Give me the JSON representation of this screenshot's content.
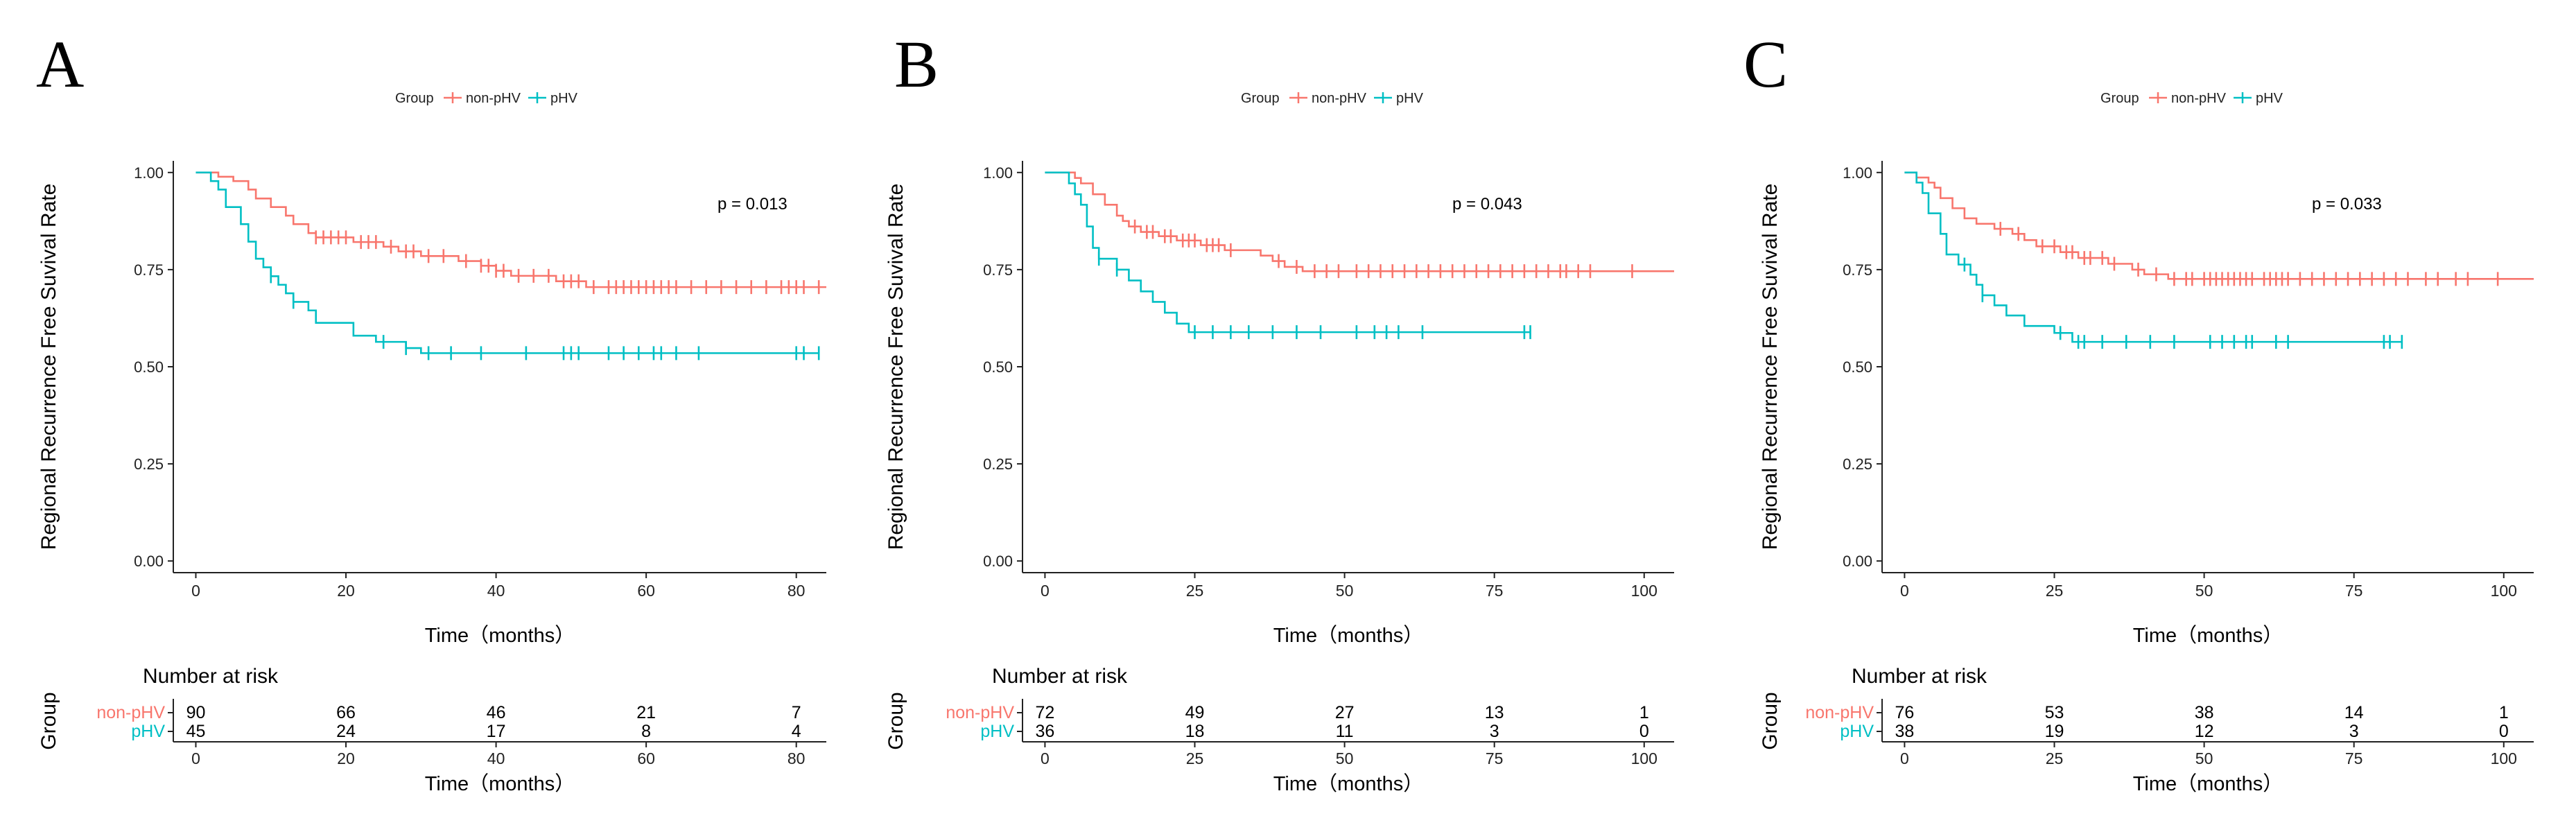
{
  "figure": {
    "legend": {
      "title": "Group",
      "entries": [
        "non-pHV",
        "pHV"
      ]
    },
    "colors": {
      "non_phv": "#F8766D",
      "phv": "#00BFC4",
      "axis": "#222222"
    },
    "ylabel": "Regional Recurrence Free Suvival Rate",
    "xlabel": "Time（months）",
    "risk_title": "Number at risk",
    "risk_ylabel": "Group"
  },
  "chart_data": [
    {
      "type": "line",
      "panel": "A",
      "p_value": "p = 0.013",
      "xlim": [
        -3,
        84
      ],
      "ylim": [
        -0.03,
        1.03
      ],
      "xticks": [
        0,
        20,
        40,
        60,
        80
      ],
      "yticks": [
        0,
        0.25,
        0.5,
        0.75,
        1
      ],
      "ytick_labels": [
        "0.00",
        "0.25",
        "0.50",
        "0.75",
        "1.00"
      ],
      "series": [
        {
          "name": "non-pHV",
          "steps": [
            [
              0,
              1.0
            ],
            [
              3,
              0.989
            ],
            [
              5,
              0.978
            ],
            [
              7,
              0.956
            ],
            [
              8,
              0.933
            ],
            [
              10,
              0.911
            ],
            [
              12,
              0.889
            ],
            [
              13,
              0.867
            ],
            [
              15,
              0.844
            ],
            [
              16,
              0.833
            ],
            [
              21,
              0.821
            ],
            [
              25,
              0.809
            ],
            [
              27,
              0.797
            ],
            [
              30,
              0.785
            ],
            [
              35,
              0.772
            ],
            [
              38,
              0.76
            ],
            [
              40,
              0.747
            ],
            [
              42,
              0.734
            ],
            [
              48,
              0.72
            ],
            [
              52,
              0.705
            ]
          ],
          "end": 84,
          "censor": [
            16,
            17,
            18,
            19,
            20,
            22,
            23,
            24,
            26,
            28,
            29,
            31,
            33,
            36,
            38,
            39,
            40,
            41,
            43,
            45,
            47,
            49,
            50,
            51,
            53,
            55,
            56,
            57,
            58,
            59,
            60,
            61,
            62,
            63,
            64,
            66,
            68,
            70,
            72,
            74,
            76,
            78,
            79,
            80,
            81,
            83
          ]
        },
        {
          "name": "pHV",
          "steps": [
            [
              0,
              1.0
            ],
            [
              2,
              0.978
            ],
            [
              3,
              0.956
            ],
            [
              4,
              0.911
            ],
            [
              6,
              0.867
            ],
            [
              7,
              0.822
            ],
            [
              8,
              0.778
            ],
            [
              9,
              0.756
            ],
            [
              10,
              0.733
            ],
            [
              11,
              0.711
            ],
            [
              12,
              0.689
            ],
            [
              13,
              0.667
            ],
            [
              15,
              0.645
            ],
            [
              16,
              0.613
            ],
            [
              21,
              0.58
            ],
            [
              24,
              0.564
            ],
            [
              28,
              0.548
            ],
            [
              30,
              0.535
            ]
          ],
          "end": 83,
          "censor": [
            10,
            13,
            25,
            28,
            31,
            34,
            38,
            44,
            49,
            50,
            51,
            55,
            57,
            59,
            61,
            62,
            64,
            67,
            80,
            81,
            83
          ]
        }
      ],
      "risk_table": {
        "x": [
          0,
          20,
          40,
          60,
          80
        ],
        "non_phv": [
          90,
          66,
          46,
          21,
          7
        ],
        "phv": [
          45,
          24,
          17,
          8,
          4
        ]
      }
    },
    {
      "type": "line",
      "panel": "B",
      "p_value": "p = 0.043",
      "xlim": [
        -3.75,
        105
      ],
      "ylim": [
        -0.03,
        1.03
      ],
      "xticks": [
        0,
        25,
        50,
        75,
        100
      ],
      "yticks": [
        0,
        0.25,
        0.5,
        0.75,
        1
      ],
      "ytick_labels": [
        "0.00",
        "0.25",
        "0.50",
        "0.75",
        "1.00"
      ],
      "series": [
        {
          "name": "non-pHV",
          "steps": [
            [
              0,
              1.0
            ],
            [
              5,
              0.986
            ],
            [
              6,
              0.972
            ],
            [
              8,
              0.944
            ],
            [
              10,
              0.917
            ],
            [
              12,
              0.889
            ],
            [
              13,
              0.875
            ],
            [
              14,
              0.861
            ],
            [
              16,
              0.847
            ],
            [
              19,
              0.836
            ],
            [
              22,
              0.825
            ],
            [
              26,
              0.813
            ],
            [
              30,
              0.8
            ],
            [
              36,
              0.786
            ],
            [
              38,
              0.772
            ],
            [
              40,
              0.757
            ],
            [
              43,
              0.746
            ]
          ],
          "end": 105,
          "censor": [
            15,
            17,
            18,
            20,
            21,
            23,
            24,
            25,
            27,
            28,
            29,
            31,
            39,
            42,
            45,
            47,
            49,
            52,
            54,
            56,
            58,
            60,
            62,
            64,
            66,
            68,
            70,
            72,
            74,
            76,
            78,
            80,
            82,
            84,
            86,
            87,
            89,
            91,
            98
          ]
        },
        {
          "name": "pHV",
          "steps": [
            [
              0,
              1.0
            ],
            [
              4,
              0.972
            ],
            [
              5,
              0.944
            ],
            [
              6,
              0.917
            ],
            [
              7,
              0.861
            ],
            [
              8,
              0.806
            ],
            [
              9,
              0.778
            ],
            [
              12,
              0.75
            ],
            [
              14,
              0.722
            ],
            [
              16,
              0.694
            ],
            [
              18,
              0.667
            ],
            [
              20,
              0.639
            ],
            [
              22,
              0.611
            ],
            [
              24,
              0.589
            ]
          ],
          "end": 81,
          "censor": [
            9,
            12,
            25,
            28,
            31,
            34,
            38,
            42,
            46,
            52,
            55,
            57,
            59,
            63,
            80,
            81
          ]
        }
      ],
      "risk_table": {
        "x": [
          0,
          25,
          50,
          75,
          100
        ],
        "non_phv": [
          72,
          49,
          27,
          13,
          1
        ],
        "phv": [
          36,
          18,
          11,
          3,
          0
        ]
      }
    },
    {
      "type": "line",
      "panel": "C",
      "p_value": "p = 0.033",
      "xlim": [
        -3.75,
        105
      ],
      "ylim": [
        -0.03,
        1.03
      ],
      "xticks": [
        0,
        25,
        50,
        75,
        100
      ],
      "yticks": [
        0,
        0.25,
        0.5,
        0.75,
        1
      ],
      "ytick_labels": [
        "0.00",
        "0.25",
        "0.50",
        "0.75",
        "1.00"
      ],
      "series": [
        {
          "name": "non-pHV",
          "steps": [
            [
              0,
              1.0
            ],
            [
              2,
              0.987
            ],
            [
              4,
              0.974
            ],
            [
              5,
              0.961
            ],
            [
              6,
              0.934
            ],
            [
              8,
              0.908
            ],
            [
              10,
              0.882
            ],
            [
              12,
              0.868
            ],
            [
              15,
              0.855
            ],
            [
              18,
              0.842
            ],
            [
              20,
              0.826
            ],
            [
              22,
              0.81
            ],
            [
              26,
              0.795
            ],
            [
              29,
              0.78
            ],
            [
              34,
              0.765
            ],
            [
              38,
              0.75
            ],
            [
              40,
              0.738
            ],
            [
              44,
              0.726
            ]
          ],
          "end": 105,
          "censor": [
            16,
            19,
            23,
            25,
            27,
            28,
            30,
            31,
            33,
            35,
            39,
            42,
            45,
            47,
            48,
            50,
            51,
            52,
            53,
            54,
            55,
            56,
            57,
            58,
            60,
            61,
            62,
            63,
            64,
            66,
            68,
            70,
            72,
            74,
            76,
            78,
            80,
            82,
            84,
            87,
            89,
            92,
            94,
            99
          ]
        },
        {
          "name": "pHV",
          "steps": [
            [
              0,
              1.0
            ],
            [
              2,
              0.974
            ],
            [
              3,
              0.947
            ],
            [
              4,
              0.895
            ],
            [
              6,
              0.842
            ],
            [
              7,
              0.789
            ],
            [
              9,
              0.763
            ],
            [
              11,
              0.737
            ],
            [
              12,
              0.711
            ],
            [
              13,
              0.684
            ],
            [
              15,
              0.658
            ],
            [
              17,
              0.632
            ],
            [
              20,
              0.605
            ],
            [
              25,
              0.587
            ],
            [
              28,
              0.564
            ]
          ],
          "end": 83,
          "censor": [
            10,
            13,
            26,
            29,
            30,
            33,
            37,
            41,
            45,
            51,
            53,
            55,
            57,
            58,
            62,
            64,
            80,
            81,
            83
          ]
        }
      ],
      "risk_table": {
        "x": [
          0,
          25,
          50,
          75,
          100
        ],
        "non_phv": [
          76,
          53,
          38,
          14,
          1
        ],
        "phv": [
          38,
          19,
          12,
          3,
          0
        ]
      }
    }
  ]
}
